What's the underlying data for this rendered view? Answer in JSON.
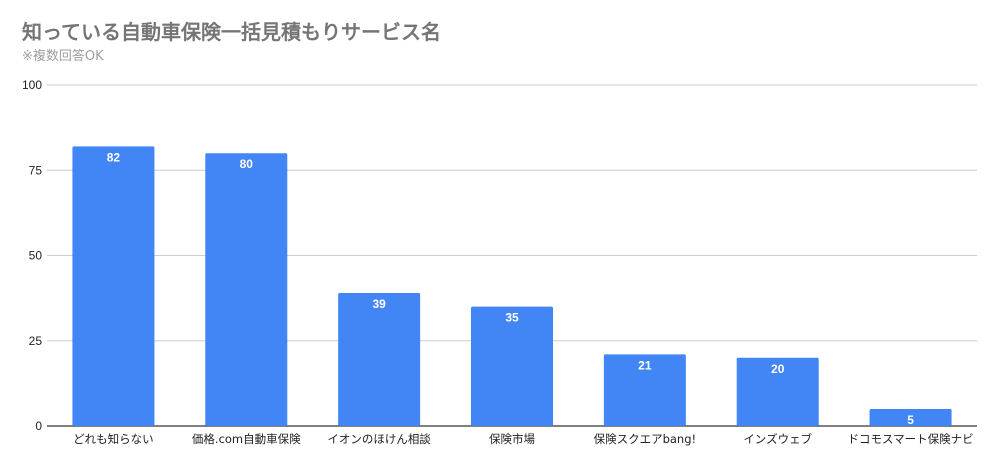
{
  "chart_data": {
    "type": "bar",
    "title": "知っている自動車保険一括見積もりサービス名",
    "subtitle": "※複数回答OK",
    "xlabel": "",
    "ylabel": "",
    "categories": [
      "どれも知らない",
      "価格.com自動車保険",
      "イオンのほけん相談",
      "保険市場",
      "保険スクエアbang!",
      "インズウェブ",
      "ドコモスマート保険ナビ"
    ],
    "values": [
      82,
      80,
      39,
      35,
      21,
      20,
      5
    ],
    "ylim": [
      0,
      100
    ],
    "yticks": [
      0,
      25,
      50,
      75,
      100
    ],
    "grid": true,
    "legend": "none",
    "data_labels": true,
    "colors": {
      "bar": "#4285f4",
      "grid": "#cccccc",
      "axis": "#333333"
    }
  }
}
